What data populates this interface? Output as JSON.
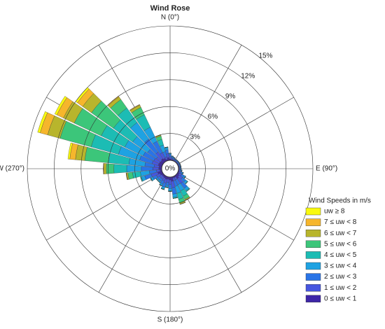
{
  "chart_data": {
    "type": "windrose",
    "title": "Wind Rose",
    "directions": [
      0,
      10,
      20,
      30,
      40,
      50,
      60,
      70,
      80,
      90,
      100,
      110,
      120,
      130,
      140,
      150,
      160,
      170,
      180,
      190,
      200,
      210,
      220,
      230,
      240,
      250,
      260,
      270,
      280,
      290,
      300,
      310,
      320,
      330,
      340,
      350
    ],
    "rlim": [
      0,
      15
    ],
    "rticks": [
      {
        "value": 0,
        "label": "0%"
      },
      {
        "value": 3,
        "label": "3%"
      },
      {
        "value": 6,
        "label": "6%"
      },
      {
        "value": 9,
        "label": "9%"
      },
      {
        "value": 12,
        "label": "12%"
      },
      {
        "value": 15,
        "label": "15%"
      }
    ],
    "thetagrid": [
      0,
      30,
      60,
      90,
      120,
      150,
      180,
      210,
      240,
      270,
      300,
      330
    ],
    "compass_labels": [
      {
        "value": 0,
        "label": "N (0°)"
      },
      {
        "value": 90,
        "label": "E (90°)"
      },
      {
        "value": 180,
        "label": "S (180°)"
      },
      {
        "value": 270,
        "label": "W (270°)"
      }
    ],
    "legend_title": "Wind Speeds in m/s",
    "series": [
      {
        "name": "0 ≤ uw < 1",
        "color": "#3e26a8",
        "values": [
          0.16,
          0.1,
          0.08,
          0.06,
          0.06,
          0.06,
          0.06,
          0.06,
          0.06,
          0.06,
          0.08,
          0.12,
          0.2,
          0.3,
          0.44,
          0.15,
          0.16,
          0.48,
          0.32,
          0.24,
          0.3,
          0.24,
          0.2,
          0.2,
          0.3,
          0.5,
          0.2,
          0.33,
          0.32,
          0.43,
          0.4,
          0.36,
          0.45,
          0.35,
          0.15,
          0.3
        ]
      },
      {
        "name": "1 ≤ uw < 2",
        "color": "#4656e0",
        "values": [
          0.24,
          0.15,
          0.12,
          0.09,
          0.09,
          0.09,
          0.09,
          0.09,
          0.09,
          0.09,
          0.12,
          0.18,
          0.3,
          0.45,
          0.66,
          0.3,
          0.32,
          0.72,
          0.48,
          0.36,
          0.45,
          0.36,
          0.3,
          0.3,
          0.45,
          0.75,
          0.4,
          0.65,
          0.53,
          0.72,
          0.67,
          0.6,
          0.9,
          0.7,
          0.3,
          0.45
        ]
      },
      {
        "name": "2 ≤ uw < 3",
        "color": "#2a74e6",
        "values": [
          0.24,
          0.15,
          0.12,
          0.09,
          0.09,
          0.09,
          0.09,
          0.09,
          0.09,
          0.09,
          0.12,
          0.18,
          0.3,
          0.45,
          0.66,
          0.6,
          0.64,
          0.72,
          0.48,
          0.36,
          0.45,
          0.36,
          0.3,
          0.3,
          0.45,
          0.75,
          0.8,
          1.3,
          1.05,
          1.44,
          1.33,
          1.2,
          1.8,
          1.4,
          0.6,
          0.45
        ]
      },
      {
        "name": "3 ≤ uw < 4",
        "color": "#1ea2e2",
        "values": [
          0.12,
          0.08,
          0.06,
          0.05,
          0.05,
          0.05,
          0.05,
          0.05,
          0.05,
          0.05,
          0.06,
          0.09,
          0.15,
          0.23,
          0.33,
          0.75,
          0.8,
          0.36,
          0.24,
          0.18,
          0.23,
          0.18,
          0.15,
          0.15,
          0.23,
          0.38,
          1.0,
          1.63,
          1.79,
          2.45,
          2.26,
          2.04,
          2.25,
          1.75,
          0.75,
          0.23
        ]
      },
      {
        "name": "4 ≤ uw < 5",
        "color": "#1cbcb4",
        "values": [
          0.04,
          0.02,
          0.02,
          0.01,
          0.01,
          0.01,
          0.01,
          0.01,
          0.01,
          0.01,
          0.02,
          0.03,
          0.05,
          0.07,
          0.11,
          0.66,
          0.7,
          0.12,
          0.08,
          0.06,
          0.07,
          0.06,
          0.05,
          0.05,
          0.07,
          0.12,
          0.88,
          1.43,
          2.31,
          3.17,
          2.93,
          2.64,
          1.98,
          1.54,
          0.66,
          0.07
        ]
      },
      {
        "name": "5 ≤ uw < 6",
        "color": "#3cc67a",
        "values": [
          0,
          0,
          0,
          0,
          0,
          0,
          0,
          0,
          0,
          0,
          0,
          0,
          0,
          0,
          0,
          0.39,
          0.42,
          0,
          0,
          0,
          0,
          0,
          0,
          0,
          0,
          0,
          0.52,
          0.85,
          2.63,
          3.6,
          3.33,
          3.0,
          1.17,
          0.91,
          0.39,
          0
        ]
      },
      {
        "name": "6 ≤ uw < 7",
        "color": "#b8b52c",
        "values": [
          0,
          0,
          0,
          0,
          0,
          0,
          0,
          0,
          0,
          0,
          0,
          0,
          0,
          0,
          0,
          0.12,
          0.13,
          0,
          0,
          0,
          0,
          0,
          0,
          0,
          0,
          0,
          0.16,
          0.26,
          1.05,
          1.44,
          1.33,
          1.2,
          0.36,
          0.28,
          0.12,
          0
        ]
      },
      {
        "name": "7 ≤ uw < 8",
        "color": "#f6b62c",
        "values": [
          0,
          0,
          0,
          0,
          0,
          0,
          0,
          0,
          0,
          0,
          0,
          0,
          0,
          0,
          0,
          0.03,
          0.03,
          0,
          0,
          0,
          0,
          0,
          0,
          0,
          0,
          0,
          0.04,
          0.07,
          0.63,
          0.86,
          0.8,
          0.72,
          0.09,
          0.07,
          0.03,
          0
        ]
      },
      {
        "name": "uw ≥ 8",
        "color": "#f9f90f",
        "values": [
          0,
          0,
          0,
          0,
          0,
          0,
          0,
          0,
          0,
          0,
          0,
          0,
          0,
          0,
          0,
          0,
          0,
          0,
          0,
          0,
          0,
          0,
          0,
          0,
          0,
          0,
          0,
          0,
          0.21,
          0.29,
          0.27,
          0.24,
          0,
          0,
          0,
          0
        ]
      }
    ]
  }
}
